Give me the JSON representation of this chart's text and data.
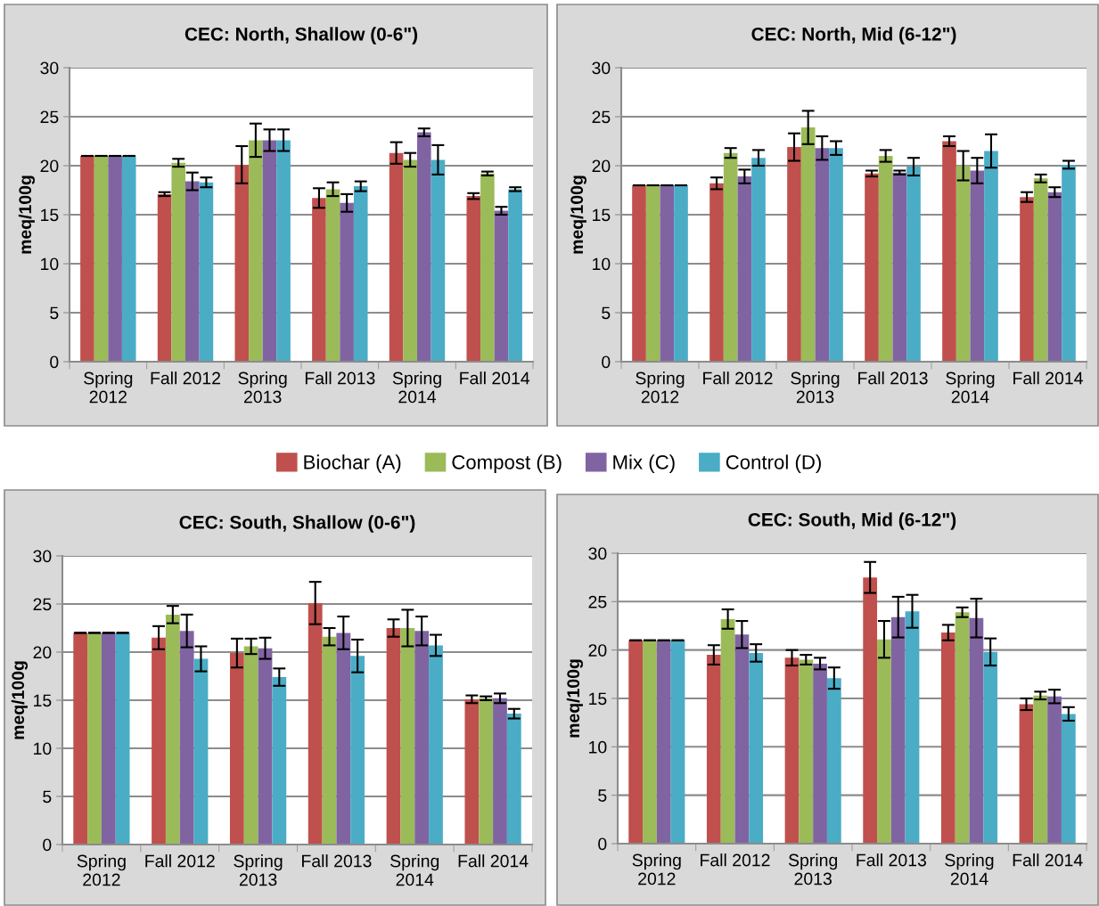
{
  "chart_data": [
    {
      "type": "bar",
      "title": "CEC: North, Shallow (0-6\")",
      "ylabel": "meq/100g",
      "categories": [
        "Spring\n2012",
        "Fall 2012",
        "Spring\n2013",
        "Fall 2013",
        "Spring\n2014",
        "Fall 2014"
      ],
      "ylim": [
        0,
        30
      ],
      "yticks": [
        0,
        5,
        10,
        15,
        20,
        25,
        30
      ],
      "grid": "y",
      "legend": "bottom",
      "series": [
        {
          "name": "Biochar (A)",
          "color": "#c0504d",
          "values": [
            21,
            17.1,
            20.1,
            16.7,
            21.3,
            16.9
          ],
          "errors": [
            0,
            0.2,
            1.9,
            1.0,
            1.1,
            0.3
          ]
        },
        {
          "name": "Compost (B)",
          "color": "#9bbb59",
          "values": [
            21,
            20.3,
            22.6,
            17.6,
            20.6,
            19.2
          ],
          "errors": [
            0,
            0.4,
            1.7,
            0.7,
            0.7,
            0.2
          ]
        },
        {
          "name": "Mix (C)",
          "color": "#8064a2",
          "values": [
            21,
            18.4,
            22.6,
            16.2,
            23.4,
            15.4
          ],
          "errors": [
            0,
            0.9,
            1.1,
            0.9,
            0.4,
            0.4
          ]
        },
        {
          "name": "Control (D)",
          "color": "#4bacc6",
          "values": [
            21,
            18.3,
            22.6,
            17.9,
            20.6,
            17.6
          ],
          "errors": [
            0,
            0.5,
            1.1,
            0.5,
            1.5,
            0.2
          ]
        }
      ]
    },
    {
      "type": "bar",
      "title": "CEC: North, Mid (6-12\")",
      "ylabel": "meq/100g",
      "categories": [
        "Spring\n2012",
        "Fall 2012",
        "Spring\n2013",
        "Fall 2013",
        "Spring\n2014",
        "Fall 2014"
      ],
      "ylim": [
        0,
        30
      ],
      "yticks": [
        0,
        5,
        10,
        15,
        20,
        25,
        30
      ],
      "grid": "y",
      "series": [
        {
          "color": "#c0504d",
          "values": [
            18,
            18.2,
            21.9,
            19.2,
            22.5,
            16.8
          ],
          "errors": [
            0,
            0.6,
            1.4,
            0.3,
            0.5,
            0.5
          ]
        },
        {
          "color": "#9bbb59",
          "values": [
            18,
            21.3,
            23.9,
            21.0,
            20.0,
            18.7
          ],
          "errors": [
            0,
            0.5,
            1.7,
            0.6,
            1.5,
            0.4
          ]
        },
        {
          "color": "#8064a2",
          "values": [
            18,
            18.9,
            21.8,
            19.3,
            19.5,
            17.3
          ],
          "errors": [
            0,
            0.7,
            1.2,
            0.2,
            1.3,
            0.5
          ]
        },
        {
          "color": "#4bacc6",
          "values": [
            18,
            20.8,
            21.8,
            19.9,
            21.5,
            20.1
          ],
          "errors": [
            0,
            0.8,
            0.7,
            0.9,
            1.7,
            0.4
          ]
        }
      ]
    },
    {
      "type": "bar",
      "title": "CEC: South, Shallow (0-6\")",
      "ylabel": "meq/100g",
      "categories": [
        "Spring\n2012",
        "Fall 2012",
        "Spring\n2013",
        "Fall 2013",
        "Spring\n2014",
        "Fall 2014"
      ],
      "ylim": [
        0,
        30
      ],
      "yticks": [
        0,
        5,
        10,
        15,
        20,
        25,
        30
      ],
      "grid": "y",
      "series": [
        {
          "color": "#c0504d",
          "values": [
            22,
            21.5,
            19.9,
            25.1,
            22.5,
            15.1
          ],
          "errors": [
            0,
            1.2,
            1.5,
            2.2,
            0.9,
            0.4
          ]
        },
        {
          "color": "#9bbb59",
          "values": [
            22,
            23.9,
            20.6,
            21.6,
            22.5,
            15.2
          ],
          "errors": [
            0,
            0.9,
            0.8,
            0.9,
            1.9,
            0.2
          ]
        },
        {
          "color": "#8064a2",
          "values": [
            22,
            22.2,
            20.4,
            22.0,
            22.2,
            15.2
          ],
          "errors": [
            0,
            1.7,
            1.1,
            1.7,
            1.5,
            0.5
          ]
        },
        {
          "color": "#4bacc6",
          "values": [
            22,
            19.3,
            17.4,
            19.6,
            20.7,
            13.6
          ],
          "errors": [
            0,
            1.3,
            0.9,
            1.7,
            1.1,
            0.5
          ]
        }
      ]
    },
    {
      "type": "bar",
      "title": "CEC: South, Mid (6-12\")",
      "ylabel": "meq/100g",
      "categories": [
        "Spring\n2012",
        "Fall 2012",
        "Spring\n2013",
        "Fall 2013",
        "Spring\n2014",
        "Fall 2014"
      ],
      "ylim": [
        0,
        30
      ],
      "yticks": [
        0,
        5,
        10,
        15,
        20,
        25,
        30
      ],
      "grid": "y",
      "series": [
        {
          "color": "#c0504d",
          "values": [
            21,
            19.5,
            19.2,
            27.5,
            21.8,
            14.4
          ],
          "errors": [
            0,
            1.0,
            0.8,
            1.6,
            0.8,
            0.6
          ]
        },
        {
          "color": "#9bbb59",
          "values": [
            21,
            23.2,
            19.0,
            21.1,
            23.9,
            15.3
          ],
          "errors": [
            0,
            1.0,
            0.5,
            1.9,
            0.5,
            0.4
          ]
        },
        {
          "color": "#8064a2",
          "values": [
            21,
            21.6,
            18.6,
            23.4,
            23.3,
            15.2
          ],
          "errors": [
            0,
            1.4,
            0.6,
            2.1,
            2.0,
            0.7
          ]
        },
        {
          "color": "#4bacc6",
          "values": [
            21,
            19.7,
            17.1,
            24.0,
            19.8,
            13.4
          ],
          "errors": [
            0,
            0.9,
            1.1,
            1.7,
            1.4,
            0.7
          ]
        }
      ]
    }
  ]
}
